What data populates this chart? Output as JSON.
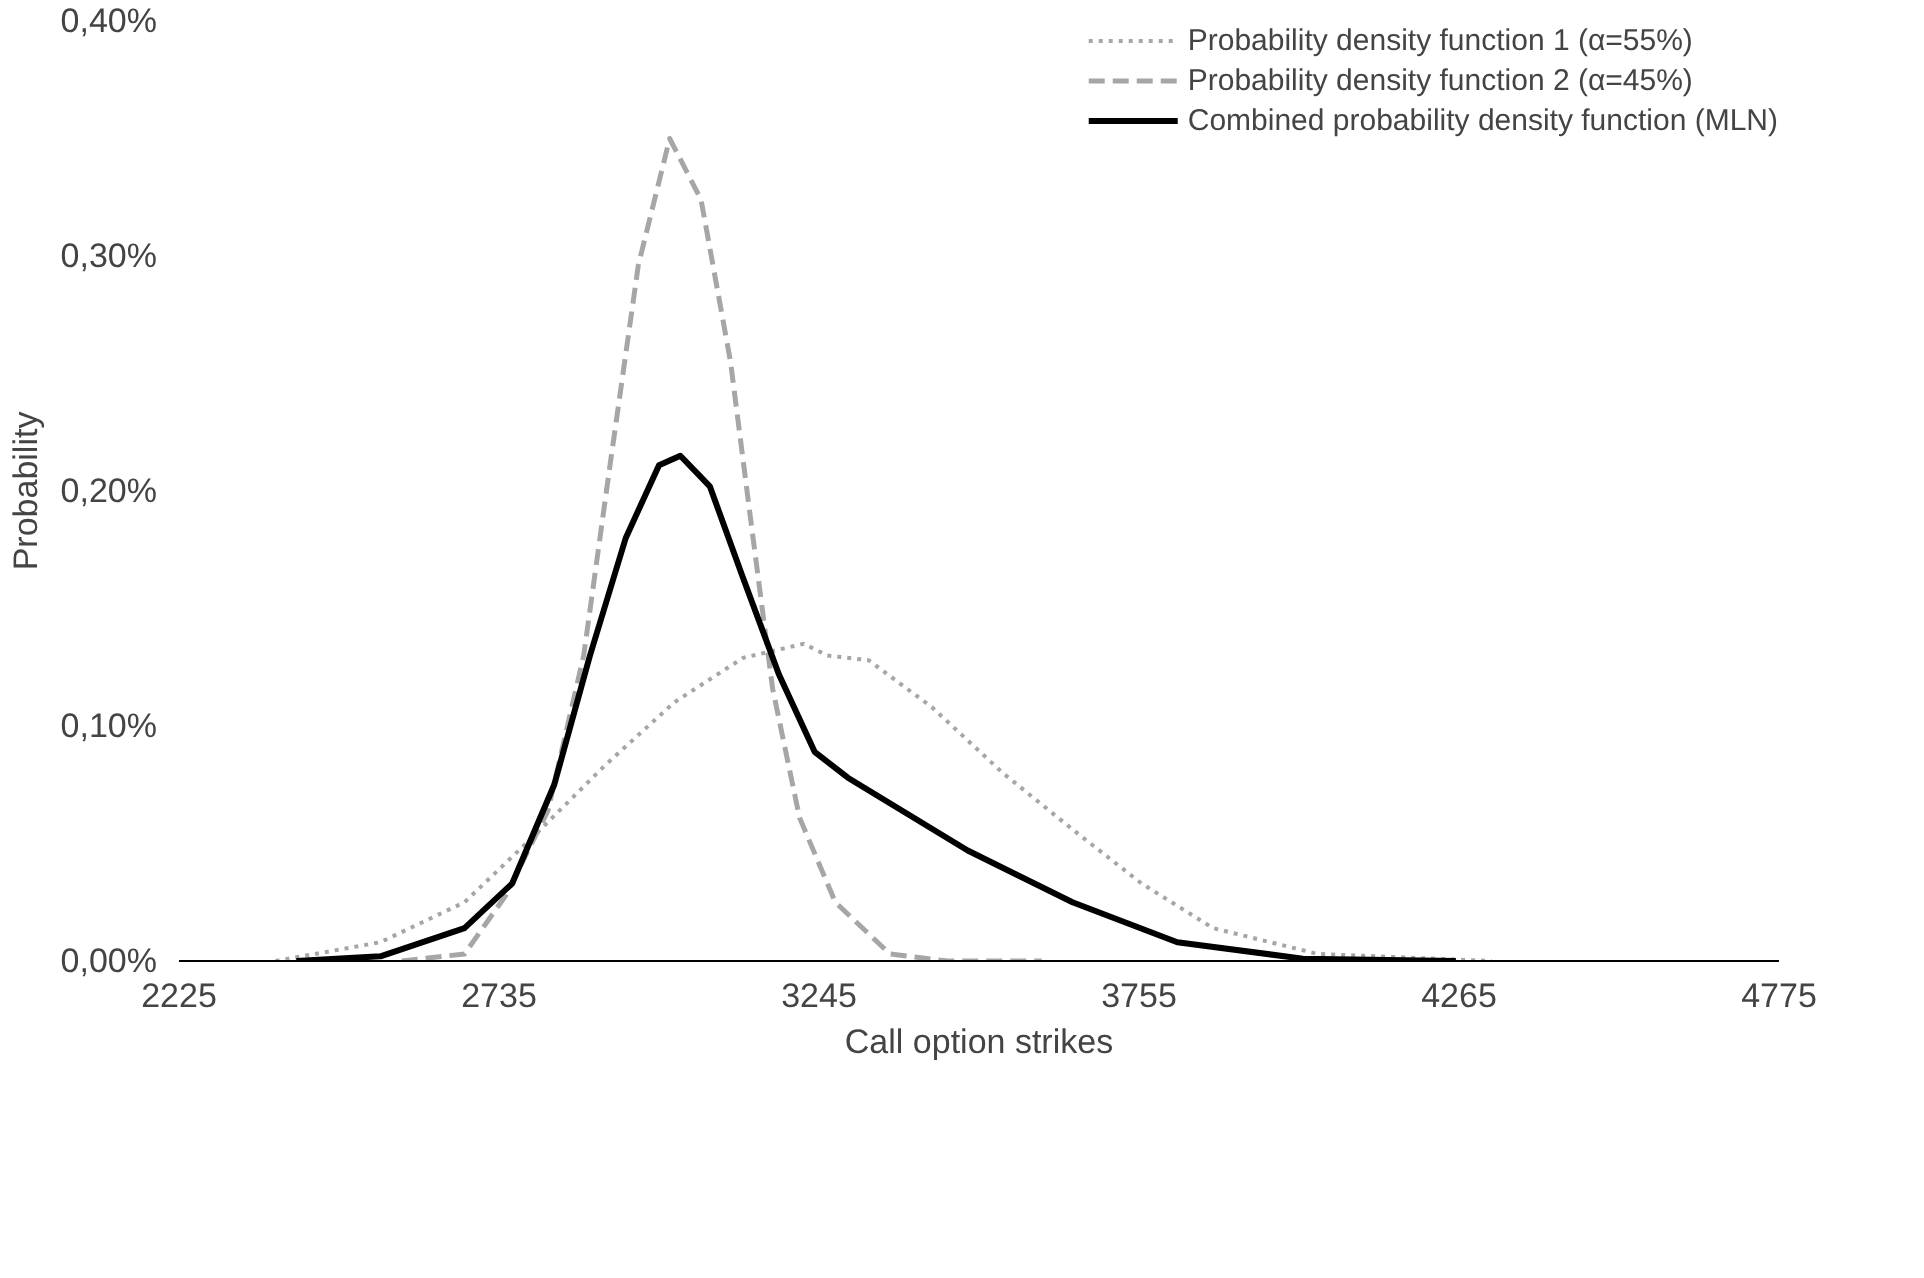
{
  "chart_data": {
    "type": "line",
    "xlabel": "Call option strikes",
    "ylabel": "Probability",
    "xlim": [
      2225,
      4775
    ],
    "xticks": [
      2225,
      2735,
      3245,
      3755,
      4265,
      4775
    ],
    "ylim": [
      0,
      0.4
    ],
    "yticks": [
      {
        "value": 0,
        "label": "0,00%"
      },
      {
        "value": 0.1,
        "label": "0,10%"
      },
      {
        "value": 0.2,
        "label": "0,20%"
      },
      {
        "value": 0.3,
        "label": "0,30%"
      },
      {
        "value": 0.4,
        "label": "0,40%"
      }
    ],
    "grid": false,
    "legend": "top right",
    "marker": "none",
    "series": [
      {
        "name": "Probability density function 1 (α=55%)",
        "color": "#a6a6a6",
        "line_style": "dotted",
        "x": [
          2379,
          2546,
          2680,
          2790,
          2903,
          3014,
          3124,
          3221,
          3258,
          3324,
          3425,
          3538,
          3649,
          3759,
          3873,
          4040,
          4317
        ],
        "values": [
          0,
          0.008,
          0.025,
          0.053,
          0.083,
          0.11,
          0.129,
          0.135,
          0.13,
          0.128,
          0.108,
          0.08,
          0.056,
          0.033,
          0.014,
          0.003,
          0
        ]
      },
      {
        "name": "Probability density function 2 (α=45%)",
        "color": "#a6a6a6",
        "line_style": "dashed",
        "x": [
          2580,
          2680,
          2746,
          2813,
          2870,
          2913,
          2957,
          3007,
          3057,
          3104,
          3137,
          3171,
          3214,
          3271,
          3358,
          3450,
          3600
        ],
        "values": [
          0,
          0.003,
          0.028,
          0.064,
          0.13,
          0.213,
          0.296,
          0.35,
          0.324,
          0.255,
          0.186,
          0.116,
          0.061,
          0.025,
          0.003,
          0,
          0
        ]
      },
      {
        "name": "Combined probability density function (MLN)",
        "color": "#000000",
        "line_style": "solid",
        "x": [
          2412,
          2546,
          2680,
          2756,
          2823,
          2880,
          2937,
          2990,
          3024,
          3071,
          3124,
          3181,
          3238,
          3291,
          3482,
          3649,
          3816,
          4016,
          4260
        ],
        "values": [
          0,
          0.002,
          0.014,
          0.033,
          0.075,
          0.13,
          0.18,
          0.211,
          0.215,
          0.202,
          0.163,
          0.122,
          0.089,
          0.078,
          0.047,
          0.025,
          0.008,
          0.001,
          0
        ]
      }
    ]
  }
}
